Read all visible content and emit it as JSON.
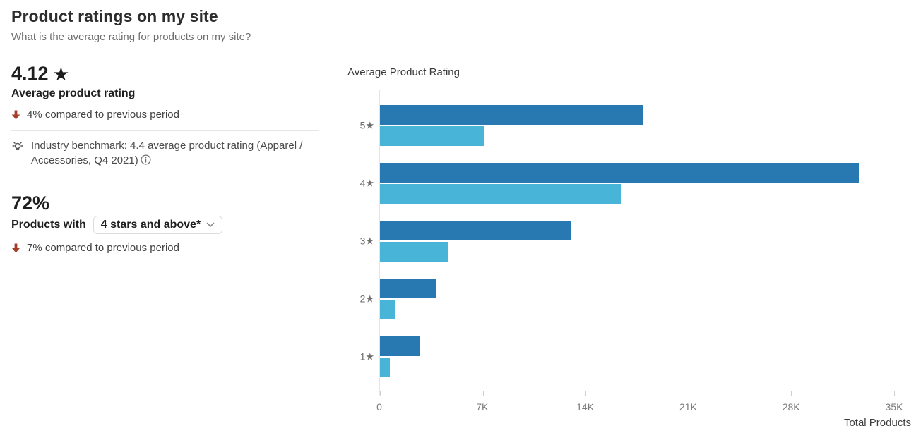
{
  "page": {
    "title": "Product ratings on my site",
    "subtitle": "What is the average rating for products on my site?"
  },
  "metrics": {
    "average_rating": {
      "value": "4.12",
      "star_icon": "★",
      "label": "Average product rating",
      "delta": "4% compared to previous period",
      "benchmark": "Industry benchmark: 4.4 average product rating (Apparel / Accessories, Q4 2021)"
    },
    "four_star_share": {
      "value": "72%",
      "label_prefix": "Products with",
      "dropdown_value": "4 stars and above*",
      "delta": "7% compared to previous period"
    }
  },
  "colors": {
    "bar_dark_blue": "#2878b2",
    "bar_light_blue": "#48b4d8",
    "delta_negative_red": "#a63c2a"
  },
  "chart_data": {
    "type": "bar",
    "orientation": "horizontal",
    "title": "Average Product Rating",
    "categories": [
      "5★",
      "4★",
      "3★",
      "2★",
      "1★"
    ],
    "series": [
      {
        "name": "dark_blue",
        "color": "#2878b2",
        "values": [
          17900,
          32600,
          13000,
          3800,
          2700
        ]
      },
      {
        "name": "light_blue",
        "color": "#48b4d8",
        "values": [
          7100,
          16400,
          4600,
          1050,
          650
        ]
      }
    ],
    "x_ticks": [
      "0",
      "7K",
      "14K",
      "21K",
      "28K",
      "35K"
    ],
    "xlim": [
      0,
      35000
    ],
    "xlabel": "Total Products",
    "grid": false,
    "legend": false
  }
}
